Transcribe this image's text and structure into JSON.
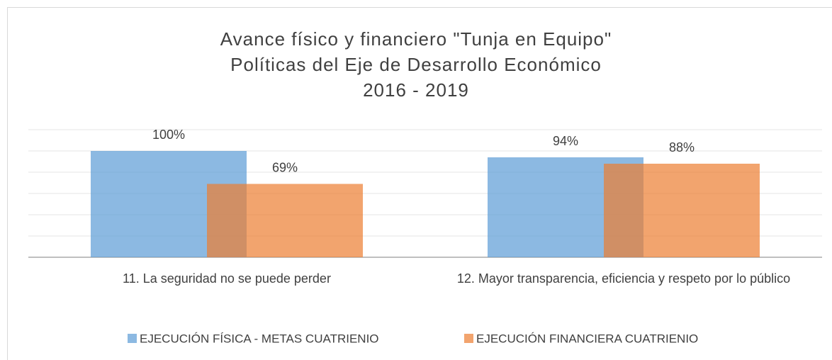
{
  "chart_data": {
    "type": "bar",
    "title": [
      "Avance físico y financiero \"Tunja en Equipo\"",
      "Políticas del Eje de Desarrollo Económico",
      "2016 - 2019"
    ],
    "categories": [
      "11. La seguridad no se puede perder",
      "12. Mayor transparencia, eficiencia y respeto por lo público"
    ],
    "series": [
      {
        "name": "EJECUCIÓN FÍSICA - METAS CUATRIENIO",
        "color": "#5b9bd5",
        "values": [
          100,
          94
        ],
        "value_labels": [
          "100%",
          "94%"
        ]
      },
      {
        "name": "EJECUCIÓN FINANCIERA CUATRIENIO",
        "color": "#ed7d31",
        "values": [
          69,
          88
        ],
        "value_labels": [
          "69%",
          "88%"
        ]
      }
    ],
    "ylim": [
      0,
      120
    ],
    "yticks": [
      0,
      20,
      40,
      60,
      80,
      100,
      120
    ],
    "grid": true,
    "legend": "bottom"
  }
}
